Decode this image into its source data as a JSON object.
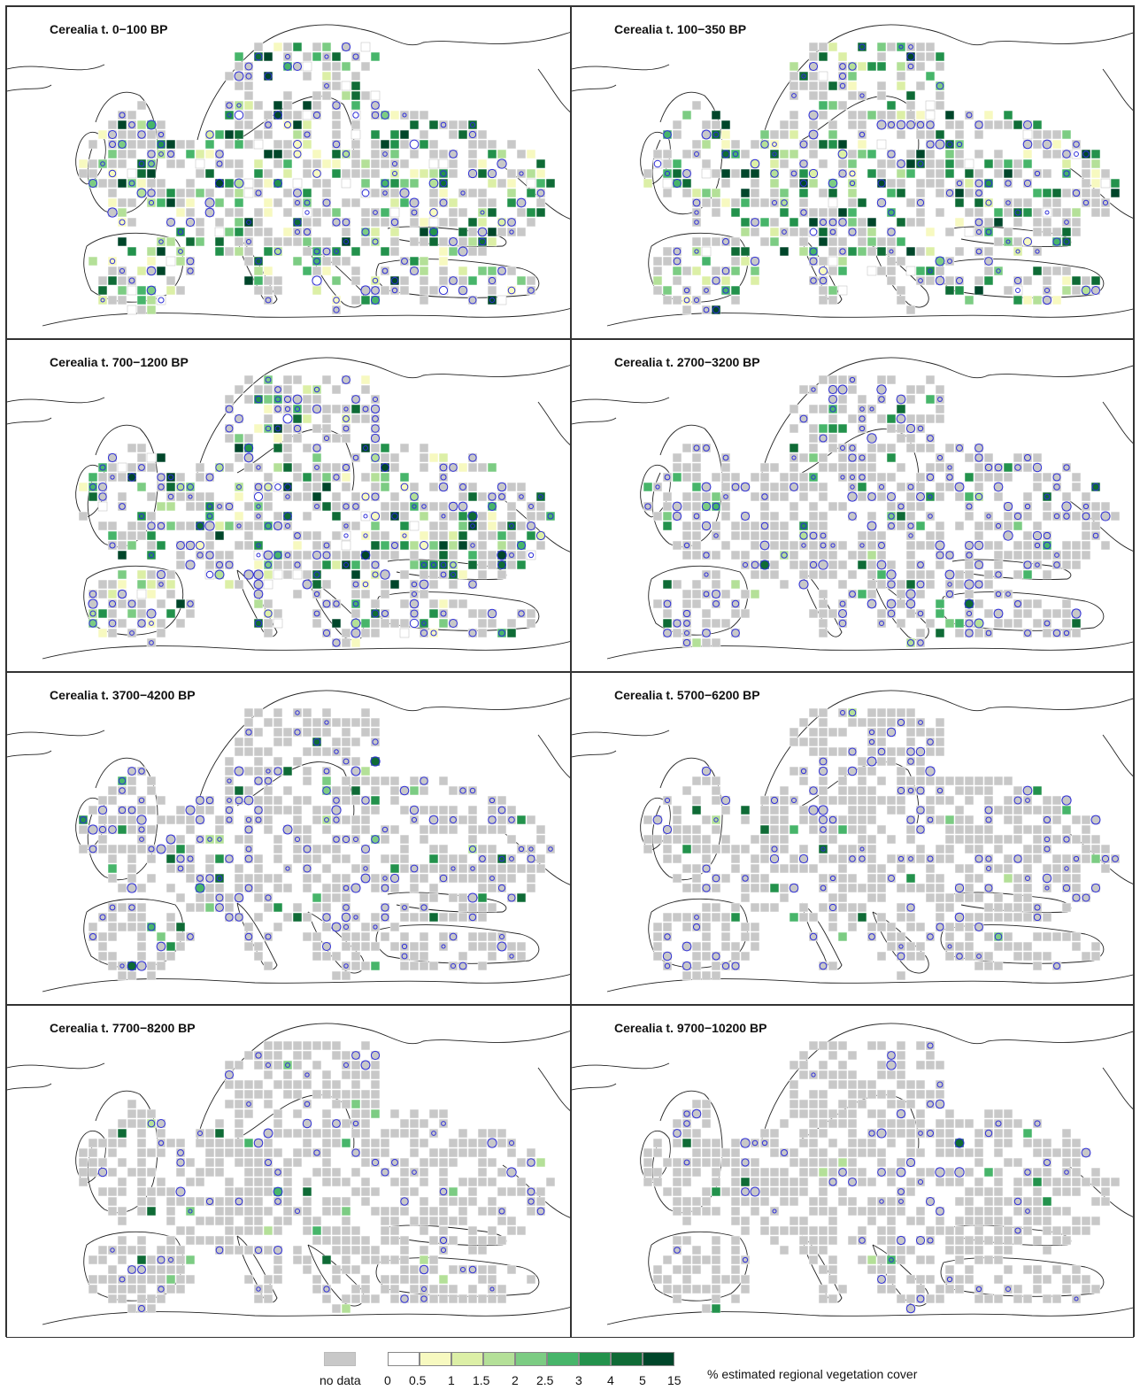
{
  "panels": [
    {
      "title": "Cerealia t. 0−100 BP",
      "level": 0
    },
    {
      "title": "Cerealia t. 100−350 BP",
      "level": 1
    },
    {
      "title": "Cerealia t. 700−1200 BP",
      "level": 2
    },
    {
      "title": "Cerealia t. 2700−3200 BP",
      "level": 3
    },
    {
      "title": "Cerealia t. 3700−4200 BP",
      "level": 4
    },
    {
      "title": "Cerealia t. 5700−6200 BP",
      "level": 5
    },
    {
      "title": "Cerealia t. 7700−8200 BP",
      "level": 6
    },
    {
      "title": "Cerealia t. 9700−10200 BP",
      "level": 7
    }
  ],
  "legend": {
    "no_data_label": "no data",
    "no_data_color": "#c8c8c8",
    "caption": "% estimated regional vegetation cover",
    "ticks": [
      "0",
      "0.5",
      "1",
      "1.5",
      "2",
      "2.5",
      "3",
      "4",
      "5",
      "15"
    ],
    "colors": [
      "#ffffff",
      "#f7f9c0",
      "#dcefa6",
      "#b4e098",
      "#7ccc83",
      "#47b56a",
      "#23924c",
      "#0f6b36",
      "#00462a"
    ]
  },
  "marker": {
    "circle_color": "#2f2fd8"
  }
}
